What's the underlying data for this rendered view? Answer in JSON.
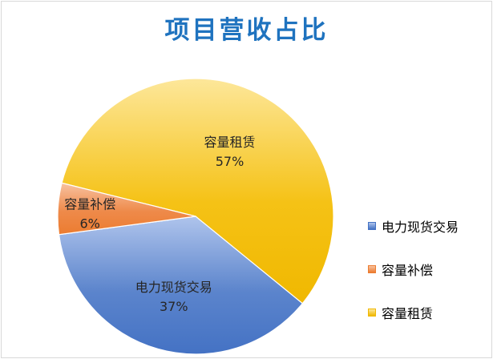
{
  "chart_data": {
    "type": "pie",
    "title": "项目营收占比",
    "slices": [
      {
        "label": "容量租赁",
        "value": 57,
        "percent_label": "57%",
        "color": "#f5c216",
        "light": "#fde79a",
        "dark": "#f0b800"
      },
      {
        "label": "电力现货交易",
        "value": 37,
        "percent_label": "37%",
        "color": "#5b84cc",
        "light": "#afc4ec",
        "dark": "#4472c4"
      },
      {
        "label": "容量补偿",
        "value": 6,
        "percent_label": "6%",
        "color": "#ee8a4a",
        "light": "#f8c2a0",
        "dark": "#ec7c30"
      }
    ],
    "legend": {
      "placement": "right",
      "entries": [
        "电力现货交易",
        "容量补偿",
        "容量租赁"
      ]
    }
  },
  "colors": {
    "title": "#1f73bf",
    "border": "#d9d9d9"
  }
}
